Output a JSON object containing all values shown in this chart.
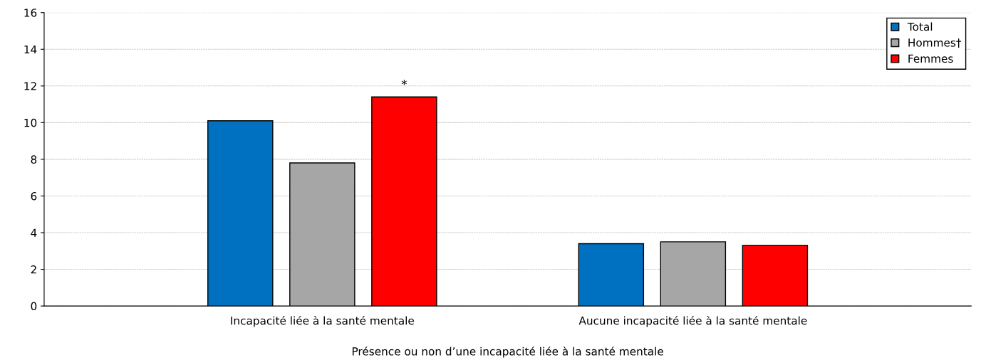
{
  "chart_data": {
    "type": "bar",
    "xlabel": "Présence ou non d’une incapacité liée à la santé mentale",
    "categories": [
      "Incapacité liée à la santé mentale",
      "Aucune incapacité liée à la santé mentale"
    ],
    "series": [
      {
        "name": "Total",
        "color": "#0070c0",
        "values": [
          10.1,
          3.4
        ]
      },
      {
        "name": "Hommes†",
        "color": "#a6a6a6",
        "values": [
          7.8,
          3.5
        ]
      },
      {
        "name": "Femmes",
        "color": "#ff0000",
        "values": [
          11.4,
          3.3
        ]
      }
    ],
    "ylim": [
      0,
      16
    ],
    "yticks": [
      0,
      2,
      4,
      6,
      8,
      10,
      12,
      14,
      16
    ],
    "grid": "y",
    "legend": "top right",
    "annotations": [
      "*"
    ]
  }
}
